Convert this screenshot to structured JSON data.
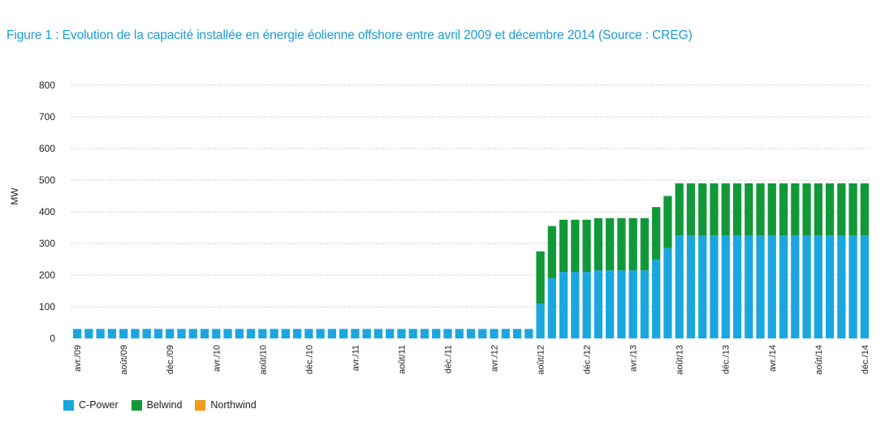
{
  "title": "Figure 1 : Evolution de la capacité installée en énergie éolienne offshore entre avril 2009 et décembre 2014 (Source : CREG)",
  "chart_data": {
    "type": "bar",
    "stacked": true,
    "ylabel": "MW",
    "ylim": [
      0,
      800
    ],
    "yticks": [
      0,
      100,
      200,
      300,
      400,
      500,
      600,
      700,
      800
    ],
    "grid": true,
    "legend_position": "bottom-left",
    "categories": [
      "avr./09",
      "mai/09",
      "juin/09",
      "juil./09",
      "août/09",
      "sept./09",
      "oct./09",
      "nov./09",
      "déc./09",
      "janv./10",
      "févr./10",
      "mars/10",
      "avr./10",
      "mai/10",
      "juin/10",
      "juil./10",
      "août/10",
      "sept./10",
      "oct./10",
      "nov./10",
      "déc./10",
      "janv./11",
      "févr./11",
      "mars/11",
      "avr./11",
      "mai/11",
      "juin/11",
      "juil./11",
      "août/11",
      "sept./11",
      "oct./11",
      "nov./11",
      "déc./11",
      "janv./12",
      "févr./12",
      "mars/12",
      "avr./12",
      "mai/12",
      "juin/12",
      "juil./12",
      "août/12",
      "sept./12",
      "oct./12",
      "nov./12",
      "déc./12",
      "janv./13",
      "févr./13",
      "mars/13",
      "avr./13",
      "mai/13",
      "juin/13",
      "juil./13",
      "août/13",
      "sept./13",
      "oct./13",
      "nov./13",
      "déc./13",
      "janv./14",
      "févr./14",
      "mars/14",
      "avr./14",
      "mai/14",
      "juin/14",
      "juil./14",
      "août/14",
      "sept./14",
      "oct./14",
      "nov./14",
      "déc./14"
    ],
    "tick_labels": [
      "avr./09",
      "août/09",
      "déc./09",
      "avr./10",
      "août/10",
      "déc./10",
      "avr./11",
      "août/11",
      "déc./11",
      "avr./12",
      "août/12",
      "déc./12",
      "avr./13",
      "août/13",
      "déc./13",
      "avr./14",
      "août/14",
      "déc./14"
    ],
    "series": [
      {
        "name": "C-Power",
        "color": "#1aa7e0",
        "values": [
          30,
          30,
          30,
          30,
          30,
          30,
          30,
          30,
          30,
          30,
          30,
          30,
          30,
          30,
          30,
          30,
          30,
          30,
          30,
          30,
          30,
          30,
          30,
          30,
          30,
          30,
          30,
          30,
          30,
          30,
          30,
          30,
          30,
          30,
          30,
          30,
          30,
          30,
          30,
          30,
          110,
          190,
          210,
          210,
          210,
          215,
          215,
          215,
          215,
          215,
          250,
          285,
          325,
          325,
          325,
          325,
          325,
          325,
          325,
          325,
          325,
          325,
          325,
          325,
          325,
          325,
          325,
          325,
          325
        ]
      },
      {
        "name": "Belwind",
        "color": "#119939",
        "values": [
          0,
          0,
          0,
          0,
          0,
          0,
          0,
          0,
          0,
          0,
          0,
          0,
          0,
          0,
          0,
          0,
          0,
          0,
          0,
          0,
          0,
          0,
          0,
          0,
          0,
          0,
          0,
          0,
          0,
          0,
          0,
          0,
          0,
          0,
          0,
          0,
          0,
          0,
          0,
          0,
          165,
          165,
          165,
          165,
          165,
          165,
          165,
          165,
          165,
          165,
          165,
          165,
          165,
          165,
          165,
          165,
          165,
          165,
          165,
          165,
          165,
          165,
          165,
          165,
          165,
          165,
          165,
          165,
          165
        ]
      },
      {
        "name": "Northwind",
        "color": "#f39a1e",
        "values": [
          0,
          0,
          0,
          0,
          0,
          0,
          0,
          0,
          0,
          0,
          0,
          0,
          0,
          0,
          0,
          0,
          0,
          0,
          0,
          0,
          0,
          0,
          0,
          0,
          0,
          0,
          0,
          0,
          0,
          0,
          0,
          0,
          0,
          0,
          0,
          0,
          0,
          0,
          0,
          0,
          0,
          0,
          0,
          0,
          0,
          0,
          0,
          0,
          0,
          0,
          0,
          0,
          0,
          0,
          0,
          0,
          0,
          0,
          0,
          0,
          0,
          0,
          0,
          0,
          0,
          0,
          0,
          0,
          0
        ]
      }
    ]
  }
}
